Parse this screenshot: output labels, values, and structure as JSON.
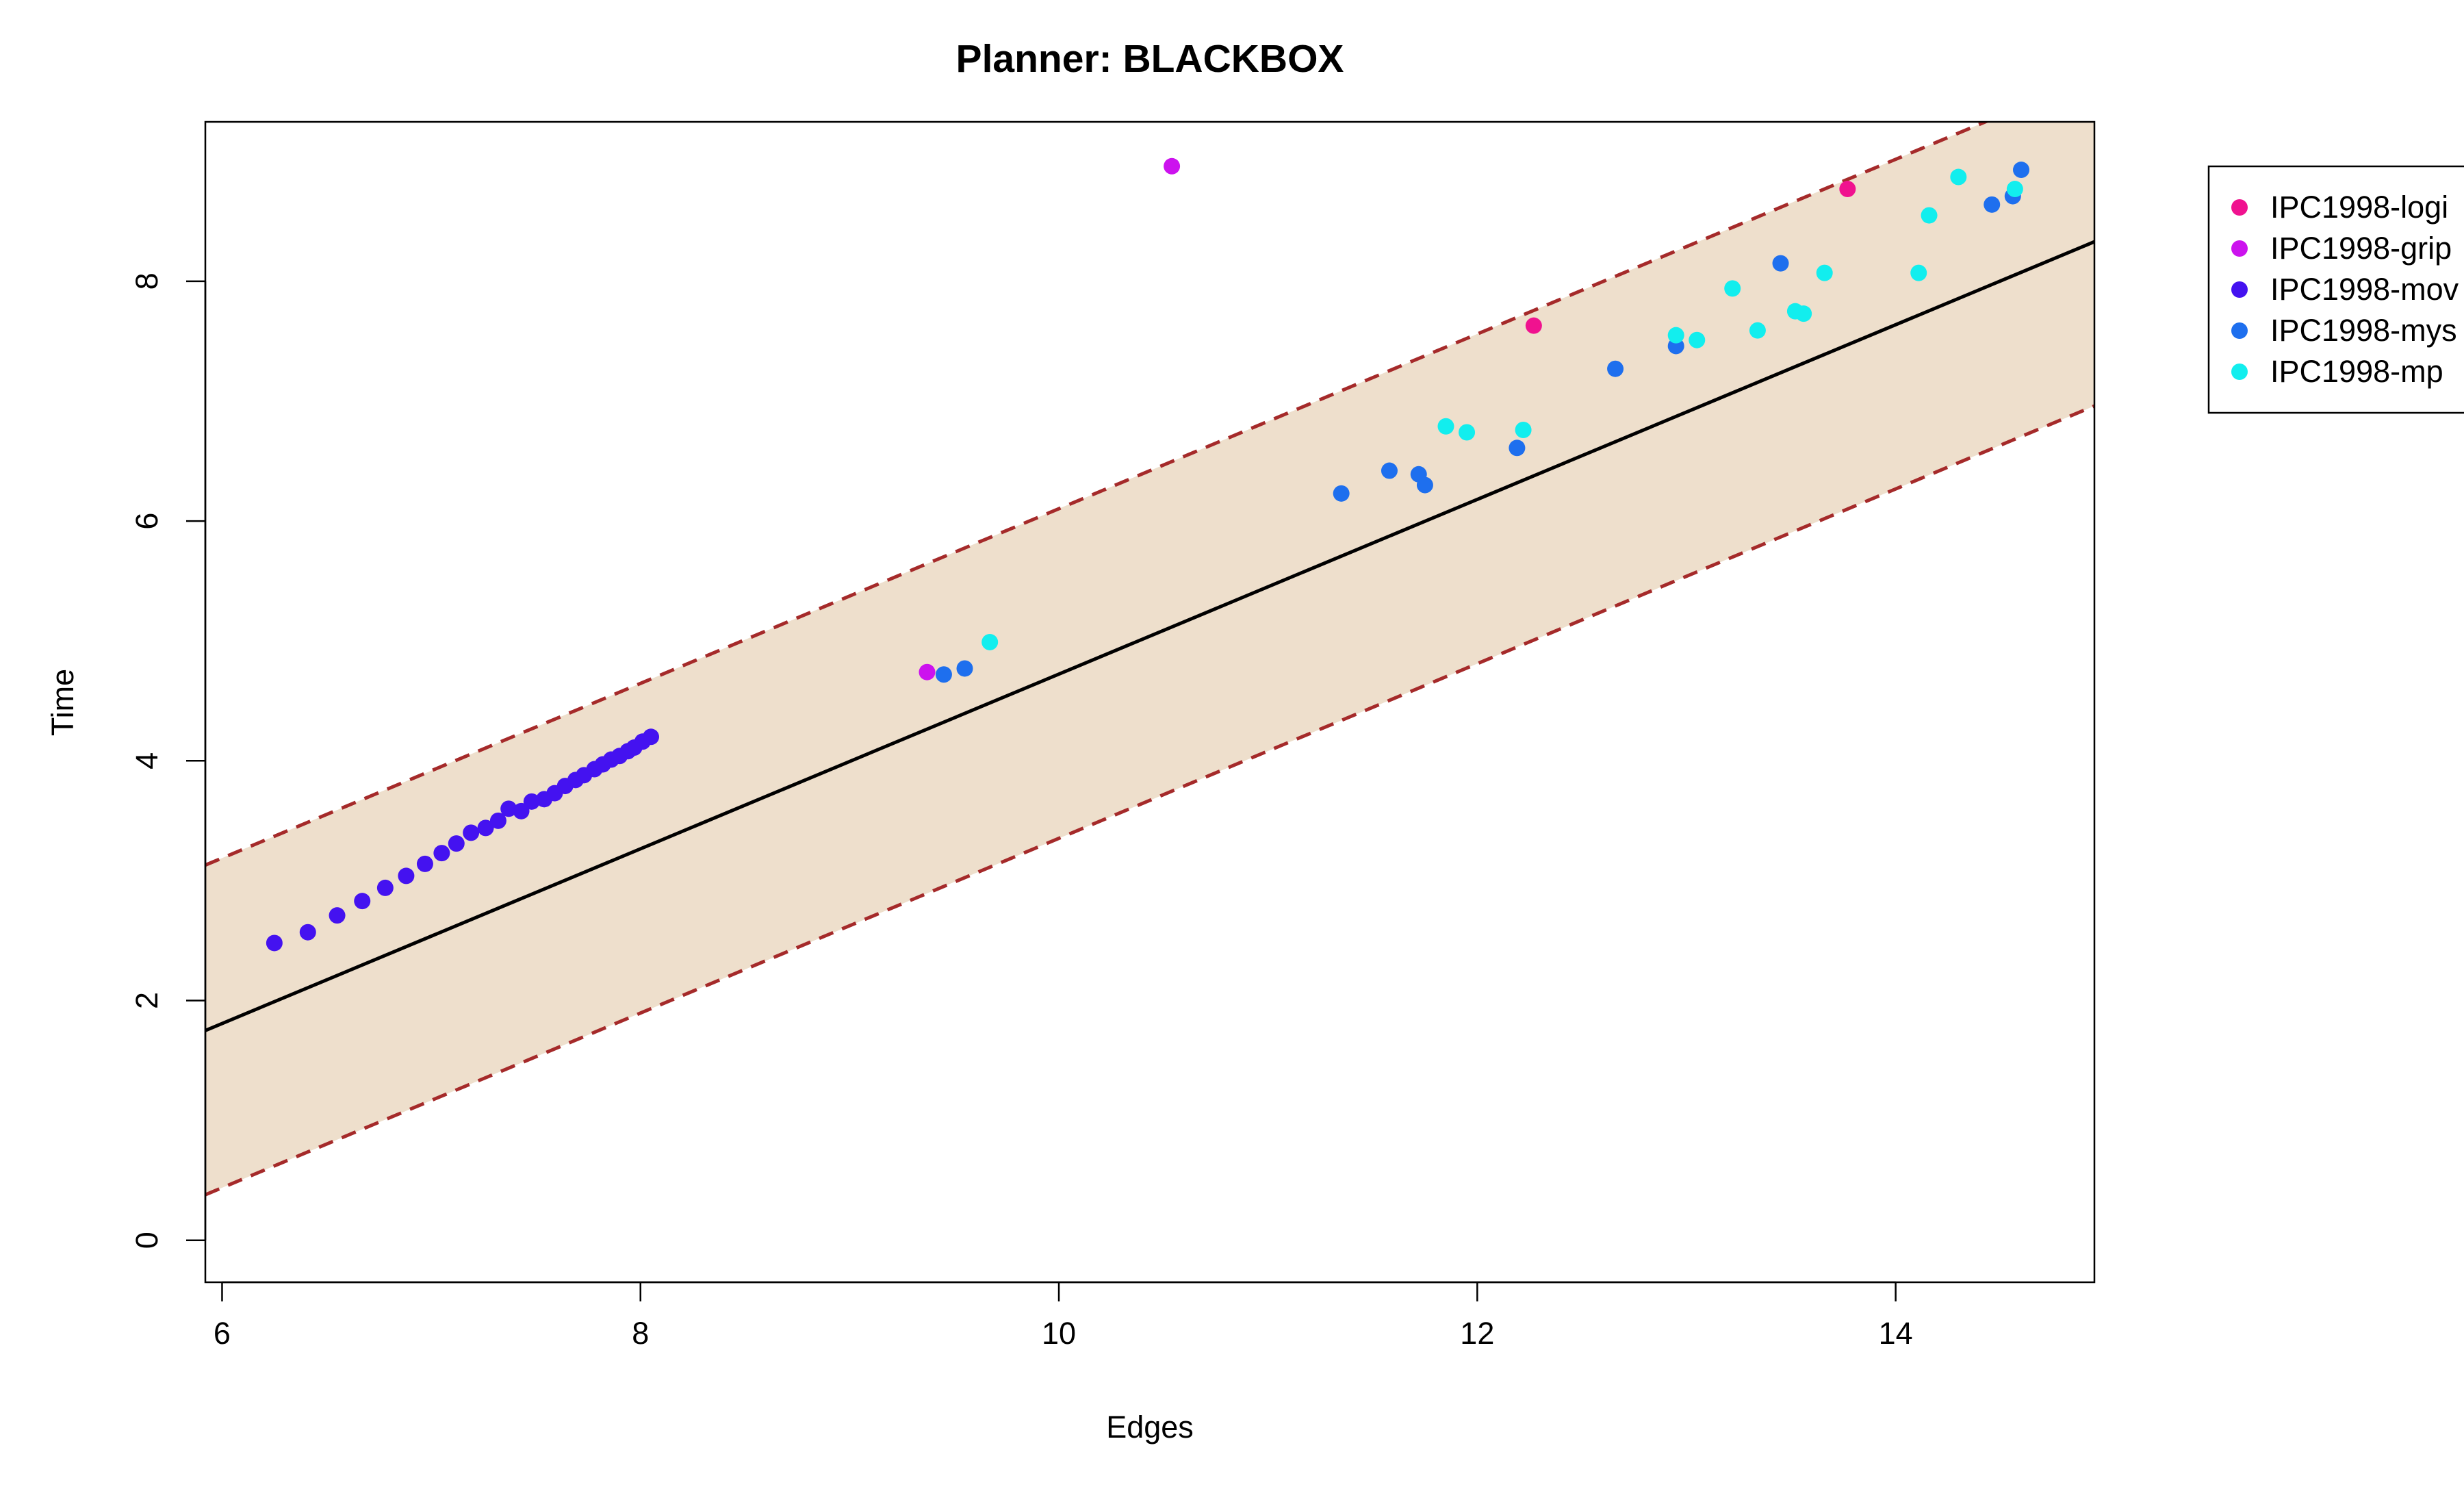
{
  "chart_data": {
    "type": "scatter",
    "title": "Planner: BLACKBOX",
    "xlabel": "Edges",
    "ylabel": "Time",
    "xlim": [
      5.92,
      14.95
    ],
    "ylim": [
      -0.35,
      9.33
    ],
    "xticks": [
      6,
      8,
      10,
      12,
      14
    ],
    "yticks": [
      0,
      2,
      4,
      6,
      8
    ],
    "grid": false,
    "legend_position": "right-outside-top",
    "fit_line": {
      "x": [
        5.92,
        14.95
      ],
      "y": [
        1.75,
        8.33
      ],
      "color": "#000000"
    },
    "band": {
      "upper": {
        "x": [
          5.92,
          14.95
        ],
        "y": [
          3.13,
          9.71
        ]
      },
      "lower": {
        "x": [
          5.92,
          14.95
        ],
        "y": [
          0.38,
          6.96
        ]
      },
      "fill": "#eedfcc",
      "line_color": "#a52a2a"
    },
    "series": [
      {
        "name": "IPC1998-logi",
        "color": "#f0128f",
        "points": [
          [
            12.27,
            7.63
          ],
          [
            13.77,
            8.77
          ]
        ]
      },
      {
        "name": "IPC1998-grip",
        "color": "#cc12ee",
        "points": [
          [
            10.54,
            8.96
          ],
          [
            9.37,
            4.74
          ]
        ]
      },
      {
        "name": "IPC1998-mov",
        "color": "#4412f0",
        "points": [
          [
            6.25,
            2.48
          ],
          [
            6.41,
            2.57
          ],
          [
            6.55,
            2.71
          ],
          [
            6.67,
            2.83
          ],
          [
            6.78,
            2.94
          ],
          [
            6.88,
            3.04
          ],
          [
            6.97,
            3.14
          ],
          [
            7.05,
            3.23
          ],
          [
            7.12,
            3.31
          ],
          [
            7.19,
            3.4
          ],
          [
            7.26,
            3.44
          ],
          [
            7.32,
            3.5
          ],
          [
            7.37,
            3.6
          ],
          [
            7.43,
            3.58
          ],
          [
            7.48,
            3.66
          ],
          [
            7.54,
            3.68
          ],
          [
            7.59,
            3.73
          ],
          [
            7.64,
            3.79
          ],
          [
            7.69,
            3.84
          ],
          [
            7.73,
            3.88
          ],
          [
            7.78,
            3.93
          ],
          [
            7.82,
            3.97
          ],
          [
            7.86,
            4.01
          ],
          [
            7.9,
            4.04
          ],
          [
            7.94,
            4.08
          ],
          [
            7.97,
            4.11
          ],
          [
            8.01,
            4.16
          ],
          [
            8.05,
            4.2
          ]
        ]
      },
      {
        "name": "IPC1998-mys",
        "color": "#1e6fee",
        "points": [
          [
            9.45,
            4.72
          ],
          [
            9.55,
            4.77
          ],
          [
            11.35,
            6.23
          ],
          [
            11.58,
            6.42
          ],
          [
            11.72,
            6.39
          ],
          [
            11.75,
            6.3
          ],
          [
            12.19,
            6.61
          ],
          [
            12.66,
            7.27
          ],
          [
            12.95,
            7.46
          ],
          [
            13.45,
            8.15
          ],
          [
            14.46,
            8.64
          ],
          [
            14.56,
            8.71
          ],
          [
            14.6,
            8.93
          ]
        ]
      },
      {
        "name": "IPC1998-mp",
        "color": "#12eeee",
        "points": [
          [
            9.67,
            4.99
          ],
          [
            11.85,
            6.79
          ],
          [
            11.95,
            6.74
          ],
          [
            12.22,
            6.76
          ],
          [
            12.95,
            7.55
          ],
          [
            13.05,
            7.51
          ],
          [
            13.22,
            7.94
          ],
          [
            13.34,
            7.59
          ],
          [
            13.52,
            7.75
          ],
          [
            13.56,
            7.73
          ],
          [
            13.66,
            8.07
          ],
          [
            14.11,
            8.07
          ],
          [
            14.16,
            8.55
          ],
          [
            14.3,
            8.87
          ],
          [
            14.57,
            8.77
          ]
        ]
      }
    ]
  }
}
